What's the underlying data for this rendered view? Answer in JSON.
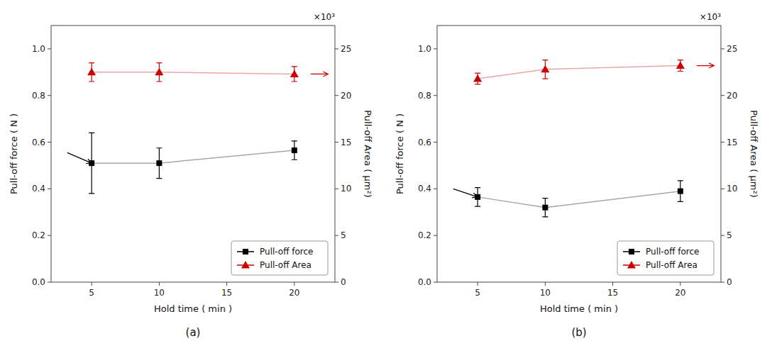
{
  "chart_data": [
    {
      "type": "line",
      "title": "(a)",
      "x_label": "Hold time ( min )",
      "y_label": "Pull-off force ( N )",
      "y2_label": "Pull-off Area ( μm²)",
      "x": [
        5,
        10,
        20
      ],
      "series": [
        {
          "name": "Pull-off force",
          "color": "#000000",
          "marker": "square",
          "values": [
            0.51,
            0.51,
            0.565
          ],
          "errors": [
            0.13,
            0.065,
            0.04
          ]
        },
        {
          "name": "Pull-off Area",
          "color": "#cc0000",
          "marker": "triangle",
          "axis": "y2",
          "values": [
            22.5,
            22.5,
            22.3
          ],
          "errors": [
            1.0,
            1.0,
            0.8
          ]
        }
      ],
      "xlim": [
        2,
        23
      ],
      "xticks": [
        5,
        10,
        15,
        20
      ],
      "ylim": [
        0.0,
        1.1
      ],
      "yticks": [
        {
          "value": 0.0,
          "label": "0.0"
        },
        0.2,
        0.4,
        0.6,
        0.8,
        {
          "value": 1.0,
          "label": "1.0"
        }
      ],
      "y2lim": [
        0,
        27.5
      ],
      "y2ticks": [
        0,
        5,
        10,
        15,
        20,
        25
      ],
      "legend": "lower right",
      "annotations": [
        {
          "type": "text",
          "text": "×10³"
        },
        {
          "type": "arrow",
          "x_from": 3.2,
          "y_from": 0.555,
          "x": 5,
          "y": 0.51,
          "color": "#000000"
        },
        {
          "type": "arrow",
          "axis": "y2",
          "x_from": 21.2,
          "y_from": 22.3,
          "x": 22.5,
          "y": 22.3,
          "color": "#cc0000"
        }
      ]
    },
    {
      "type": "line",
      "title": "(b)",
      "x_label": "Hold time ( min )",
      "y_label": "Pull-off force ( N )",
      "y2_label": "Pull-off Area ( μm²)",
      "x": [
        5,
        10,
        20
      ],
      "series": [
        {
          "name": "Pull-off force",
          "color": "#000000",
          "marker": "square",
          "values": [
            0.365,
            0.32,
            0.39
          ],
          "errors": [
            0.04,
            0.04,
            0.045
          ]
        },
        {
          "name": "Pull-off Area",
          "color": "#cc0000",
          "marker": "triangle",
          "axis": "y2",
          "values": [
            21.8,
            22.8,
            23.2
          ],
          "errors": [
            0.6,
            1.0,
            0.6
          ]
        }
      ],
      "xlim": [
        2,
        23
      ],
      "xticks": [
        5,
        10,
        15,
        20
      ],
      "ylim": [
        0.0,
        1.1
      ],
      "yticks": [
        {
          "value": 0.0,
          "label": "0.0"
        },
        0.2,
        0.4,
        0.6,
        0.8,
        {
          "value": 1.0,
          "label": "1.0"
        }
      ],
      "y2lim": [
        0,
        27.5
      ],
      "y2ticks": [
        0,
        5,
        10,
        15,
        20,
        25
      ],
      "legend": "lower right",
      "annotations": [
        {
          "type": "text",
          "text": "×10³"
        },
        {
          "type": "arrow",
          "x_from": 3.2,
          "y_from": 0.4,
          "x": 5,
          "y": 0.365,
          "color": "#000000"
        },
        {
          "type": "arrow",
          "axis": "y2",
          "x_from": 21.2,
          "y_from": 23.2,
          "x": 22.5,
          "y": 23.2,
          "color": "#cc0000"
        }
      ]
    }
  ]
}
